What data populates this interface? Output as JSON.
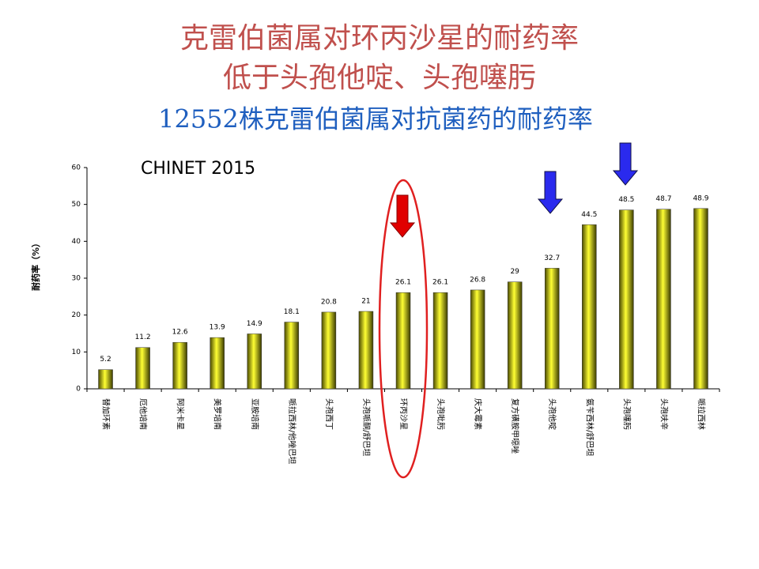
{
  "chart_data": {
    "type": "bar",
    "title_lines": [
      "克雷伯菌属对环丙沙星的耐药率",
      "低于头孢他啶、头孢噻肟"
    ],
    "subtitle": "12552株克雷伯菌属对抗菌药的耐药率",
    "annotation": "CHINET 2015",
    "y_label": "耐药率（%）",
    "categories": [
      "替加环素",
      "厄他培南",
      "阿米卡星",
      "美罗培南",
      "亚胺培南",
      "哌拉西林/他唑巴坦",
      "头孢西丁",
      "头孢哌酮/舒巴坦",
      "环丙沙星",
      "头孢吡肟",
      "庆大霉素",
      "复方磺胺甲噁唑",
      "头孢他啶",
      "氨苄西林/舒巴坦",
      "头孢噻肟",
      "头孢呋辛",
      "哌拉西林"
    ],
    "values": [
      5.2,
      11.2,
      12.6,
      13.9,
      14.9,
      18.1,
      20.8,
      21,
      26.1,
      26.1,
      26.8,
      29,
      32.7,
      44.5,
      48.5,
      48.7,
      48.9
    ],
    "color": "#e6e600",
    "ylim": [
      0,
      60
    ],
    "yticks": [
      0,
      10,
      20,
      30,
      40,
      50,
      60
    ],
    "grid": false
  }
}
